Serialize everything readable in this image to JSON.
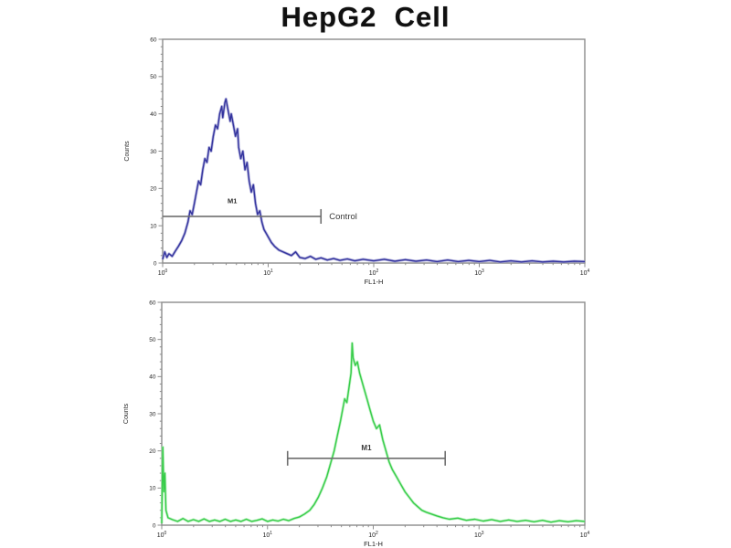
{
  "title": "HepG2  Cell",
  "chart_data": {
    "type": "line",
    "title": "HepG2  Cell",
    "xlabel": "FL1-H",
    "ylabel": "Counts",
    "x_scale": "log10",
    "x_range_decades": [
      0,
      4
    ],
    "x_tick_exponents": [
      0,
      1,
      2,
      3,
      4
    ],
    "style": {
      "axis_color": "#8c8c8c",
      "tick_text_color": "#1f1f1f",
      "gate_color": "#6e6e6e",
      "gate_label_color": "#3a3a3a",
      "background": "#ffffff"
    },
    "plots": [
      {
        "id": "blue-control-panel",
        "curve_color": "#34349e",
        "halo_color": "#9a9ad2",
        "ylim": [
          0,
          60
        ],
        "y_ticks": [
          0,
          10,
          20,
          30,
          40,
          50,
          60
        ],
        "gate": {
          "label": "Control",
          "from_decade": 0.0,
          "to_decade": 1.5,
          "counts_level": 12.5,
          "caps": [
            "right"
          ],
          "label_position": "right"
        },
        "annotations": [
          {
            "text": "M1",
            "decade": 0.66,
            "counts": 16
          }
        ],
        "points": [
          [
            0.0,
            1
          ],
          [
            0.02,
            3
          ],
          [
            0.04,
            1.5
          ],
          [
            0.06,
            2.5
          ],
          [
            0.09,
            1.8
          ],
          [
            0.12,
            3.2
          ],
          [
            0.15,
            4.5
          ],
          [
            0.18,
            6
          ],
          [
            0.21,
            8
          ],
          [
            0.24,
            11
          ],
          [
            0.26,
            14
          ],
          [
            0.28,
            13
          ],
          [
            0.3,
            16
          ],
          [
            0.32,
            19
          ],
          [
            0.34,
            22
          ],
          [
            0.36,
            21
          ],
          [
            0.38,
            25
          ],
          [
            0.4,
            28
          ],
          [
            0.42,
            27
          ],
          [
            0.44,
            31
          ],
          [
            0.46,
            30
          ],
          [
            0.48,
            34
          ],
          [
            0.5,
            37
          ],
          [
            0.52,
            36
          ],
          [
            0.54,
            40
          ],
          [
            0.56,
            42
          ],
          [
            0.57,
            39
          ],
          [
            0.59,
            43
          ],
          [
            0.6,
            44
          ],
          [
            0.62,
            41
          ],
          [
            0.64,
            38
          ],
          [
            0.65,
            40
          ],
          [
            0.67,
            37
          ],
          [
            0.69,
            34
          ],
          [
            0.71,
            36
          ],
          [
            0.72,
            31
          ],
          [
            0.74,
            28
          ],
          [
            0.76,
            30
          ],
          [
            0.78,
            25
          ],
          [
            0.8,
            27
          ],
          [
            0.82,
            22
          ],
          [
            0.84,
            19
          ],
          [
            0.86,
            21
          ],
          [
            0.88,
            16
          ],
          [
            0.9,
            13
          ],
          [
            0.92,
            14
          ],
          [
            0.94,
            11
          ],
          [
            0.96,
            9
          ],
          [
            0.98,
            8
          ],
          [
            1.0,
            7
          ],
          [
            1.03,
            5.5
          ],
          [
            1.06,
            4.5
          ],
          [
            1.1,
            3.5
          ],
          [
            1.14,
            3
          ],
          [
            1.18,
            2.5
          ],
          [
            1.22,
            2
          ],
          [
            1.26,
            3
          ],
          [
            1.3,
            1.5
          ],
          [
            1.35,
            1.2
          ],
          [
            1.4,
            1.8
          ],
          [
            1.45,
            1
          ],
          [
            1.5,
            1.4
          ],
          [
            1.56,
            0.8
          ],
          [
            1.62,
            1.2
          ],
          [
            1.68,
            0.7
          ],
          [
            1.75,
            1.1
          ],
          [
            1.82,
            0.6
          ],
          [
            1.9,
            1
          ],
          [
            2.0,
            0.6
          ],
          [
            2.1,
            1
          ],
          [
            2.2,
            0.5
          ],
          [
            2.3,
            0.9
          ],
          [
            2.4,
            0.5
          ],
          [
            2.5,
            0.8
          ],
          [
            2.6,
            0.4
          ],
          [
            2.7,
            0.8
          ],
          [
            2.8,
            0.4
          ],
          [
            2.9,
            0.7
          ],
          [
            3.0,
            0.4
          ],
          [
            3.1,
            0.7
          ],
          [
            3.2,
            0.3
          ],
          [
            3.3,
            0.6
          ],
          [
            3.4,
            0.3
          ],
          [
            3.5,
            0.6
          ],
          [
            3.6,
            0.3
          ],
          [
            3.7,
            0.5
          ],
          [
            3.8,
            0.3
          ],
          [
            3.9,
            0.5
          ],
          [
            4.0,
            0.4
          ]
        ]
      },
      {
        "id": "green-antibody-panel",
        "curve_color": "#38cc4a",
        "halo_color": "#a9eeb0",
        "ylim": [
          0,
          60
        ],
        "y_ticks": [
          0,
          10,
          20,
          30,
          40,
          50,
          60
        ],
        "gate": {
          "label": "M1",
          "from_decade": 1.19,
          "to_decade": 2.68,
          "counts_level": 18,
          "caps": [
            "left",
            "right"
          ],
          "label_position": "above-center"
        },
        "annotations": [],
        "points": [
          [
            0.0,
            0.5
          ],
          [
            0.01,
            21
          ],
          [
            0.02,
            9
          ],
          [
            0.03,
            14
          ],
          [
            0.04,
            4
          ],
          [
            0.06,
            2
          ],
          [
            0.1,
            1.5
          ],
          [
            0.15,
            1
          ],
          [
            0.2,
            1.8
          ],
          [
            0.25,
            1
          ],
          [
            0.3,
            1.5
          ],
          [
            0.35,
            1
          ],
          [
            0.4,
            1.7
          ],
          [
            0.45,
            1
          ],
          [
            0.5,
            1.4
          ],
          [
            0.55,
            1
          ],
          [
            0.6,
            1.6
          ],
          [
            0.65,
            1
          ],
          [
            0.7,
            1.4
          ],
          [
            0.75,
            1
          ],
          [
            0.8,
            1.6
          ],
          [
            0.85,
            1
          ],
          [
            0.9,
            1.3
          ],
          [
            0.95,
            1.7
          ],
          [
            1.0,
            1
          ],
          [
            1.05,
            1.4
          ],
          [
            1.1,
            1.1
          ],
          [
            1.15,
            1.6
          ],
          [
            1.2,
            1.2
          ],
          [
            1.25,
            1.8
          ],
          [
            1.3,
            2.2
          ],
          [
            1.35,
            3
          ],
          [
            1.4,
            4
          ],
          [
            1.44,
            5.5
          ],
          [
            1.48,
            7.5
          ],
          [
            1.52,
            10
          ],
          [
            1.56,
            13
          ],
          [
            1.6,
            17
          ],
          [
            1.63,
            20
          ],
          [
            1.66,
            24
          ],
          [
            1.69,
            28
          ],
          [
            1.71,
            31
          ],
          [
            1.73,
            34
          ],
          [
            1.75,
            33
          ],
          [
            1.77,
            37
          ],
          [
            1.79,
            41
          ],
          [
            1.8,
            49
          ],
          [
            1.81,
            45
          ],
          [
            1.83,
            43
          ],
          [
            1.85,
            44
          ],
          [
            1.87,
            41
          ],
          [
            1.89,
            39
          ],
          [
            1.91,
            37
          ],
          [
            1.94,
            34
          ],
          [
            1.97,
            31
          ],
          [
            2.0,
            28
          ],
          [
            2.03,
            26
          ],
          [
            2.06,
            27
          ],
          [
            2.09,
            23
          ],
          [
            2.12,
            20
          ],
          [
            2.15,
            17
          ],
          [
            2.18,
            15
          ],
          [
            2.22,
            13
          ],
          [
            2.26,
            11
          ],
          [
            2.3,
            9
          ],
          [
            2.34,
            7.5
          ],
          [
            2.38,
            6
          ],
          [
            2.42,
            5
          ],
          [
            2.46,
            4
          ],
          [
            2.5,
            3.5
          ],
          [
            2.55,
            3
          ],
          [
            2.6,
            2.5
          ],
          [
            2.66,
            2
          ],
          [
            2.72,
            1.6
          ],
          [
            2.8,
            1.9
          ],
          [
            2.88,
            1.3
          ],
          [
            2.96,
            1.6
          ],
          [
            3.04,
            1.1
          ],
          [
            3.12,
            1.5
          ],
          [
            3.2,
            1
          ],
          [
            3.28,
            1.4
          ],
          [
            3.36,
            1
          ],
          [
            3.44,
            1.3
          ],
          [
            3.52,
            0.9
          ],
          [
            3.6,
            1.3
          ],
          [
            3.68,
            0.8
          ],
          [
            3.76,
            1.2
          ],
          [
            3.84,
            0.9
          ],
          [
            3.92,
            1.2
          ],
          [
            4.0,
            1
          ]
        ]
      }
    ]
  }
}
